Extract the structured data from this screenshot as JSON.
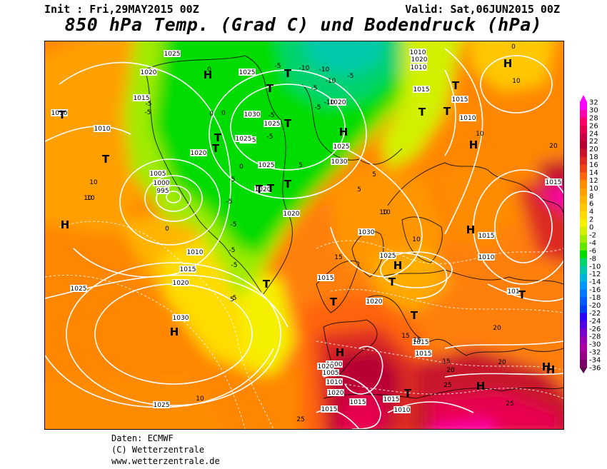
{
  "header": {
    "init": "Init : Fri,29MAY2015 00Z",
    "valid": "Valid: Sat,06JUN2015 00Z",
    "title": "850 hPa Temp. (Grad C) und Bodendruck (hPa)"
  },
  "footer": {
    "source": "Daten: ECMWF",
    "copyright": "(C) Wetterzentrale",
    "url": "www.wetterzentrale.de"
  },
  "legend": {
    "values": [
      "32",
      "30",
      "28",
      "26",
      "24",
      "22",
      "20",
      "18",
      "16",
      "14",
      "12",
      "10",
      "8",
      "6",
      "4",
      "2",
      "0",
      "-2",
      "-4",
      "-6",
      "-8",
      "-10",
      "-12",
      "-14",
      "-16",
      "-18",
      "-20",
      "-22",
      "-24",
      "-26",
      "-28",
      "-30",
      "-32",
      "-34",
      "-36"
    ],
    "colors": [
      "#ff00ff",
      "#ff00aa",
      "#ff0066",
      "#e80050",
      "#cc0040",
      "#b80030",
      "#c8142a",
      "#dd2a20",
      "#ee4418",
      "#ff6410",
      "#ff8c00",
      "#ffa000",
      "#ffb400",
      "#ffc800",
      "#ffdc00",
      "#f5f000",
      "#d2f000",
      "#a0eb00",
      "#64e600",
      "#00dc00",
      "#00d26e",
      "#00c8aa",
      "#00b4dc",
      "#0096ff",
      "#0078ff",
      "#005aff",
      "#003cff",
      "#2800ff",
      "#5000e6",
      "#7800cc",
      "#9600b4",
      "#aa009b",
      "#960082",
      "#780066",
      "#5a004b"
    ]
  },
  "map": {
    "pressure_labels": [
      "1025",
      "1020",
      "1015",
      "1010",
      "1010",
      "1005",
      "1000",
      "995",
      "1025",
      "1030",
      "1025",
      "1025",
      "1020",
      "1020",
      "1030",
      "1025",
      "1030",
      "1025",
      "1020",
      "1010",
      "1015",
      "1020",
      "1025",
      "1030",
      "1025",
      "1015",
      "1020",
      "1015",
      "1000",
      "1005",
      "1010",
      "1020",
      "1015",
      "1010",
      "1020",
      "1010",
      "1015",
      "1015",
      "1010",
      "1015",
      "1015",
      "1010",
      "101",
      "1015",
      "1020",
      "1015",
      "1010",
      "1015",
      "1025",
      "1025",
      "1020"
    ],
    "temp_labels": [
      "-5",
      "-5",
      "-5",
      "-5",
      "-5",
      "-10",
      "-10",
      "-10",
      "-10",
      "-5",
      "-5",
      "-5",
      "-5",
      "-5",
      "-5",
      "0",
      "0",
      "0",
      "0",
      "0",
      "0",
      "5",
      "5",
      "5",
      "5",
      "10",
      "10",
      "10",
      "10",
      "10",
      "10",
      "10",
      "10",
      "15",
      "15",
      "15",
      "20",
      "20",
      "20",
      "20",
      "25",
      "25",
      "25",
      "-5",
      "-5",
      "-5",
      "10",
      "15"
    ],
    "highs": [
      "H",
      "H",
      "H",
      "H",
      "H",
      "H",
      "H",
      "H",
      "H",
      "H",
      "H",
      "H"
    ],
    "lows": [
      "T",
      "T",
      "T",
      "T",
      "T",
      "T",
      "T",
      "T",
      "T",
      "T",
      "T",
      "T",
      "T",
      "T",
      "T",
      "T",
      "T",
      "T",
      "T"
    ]
  }
}
